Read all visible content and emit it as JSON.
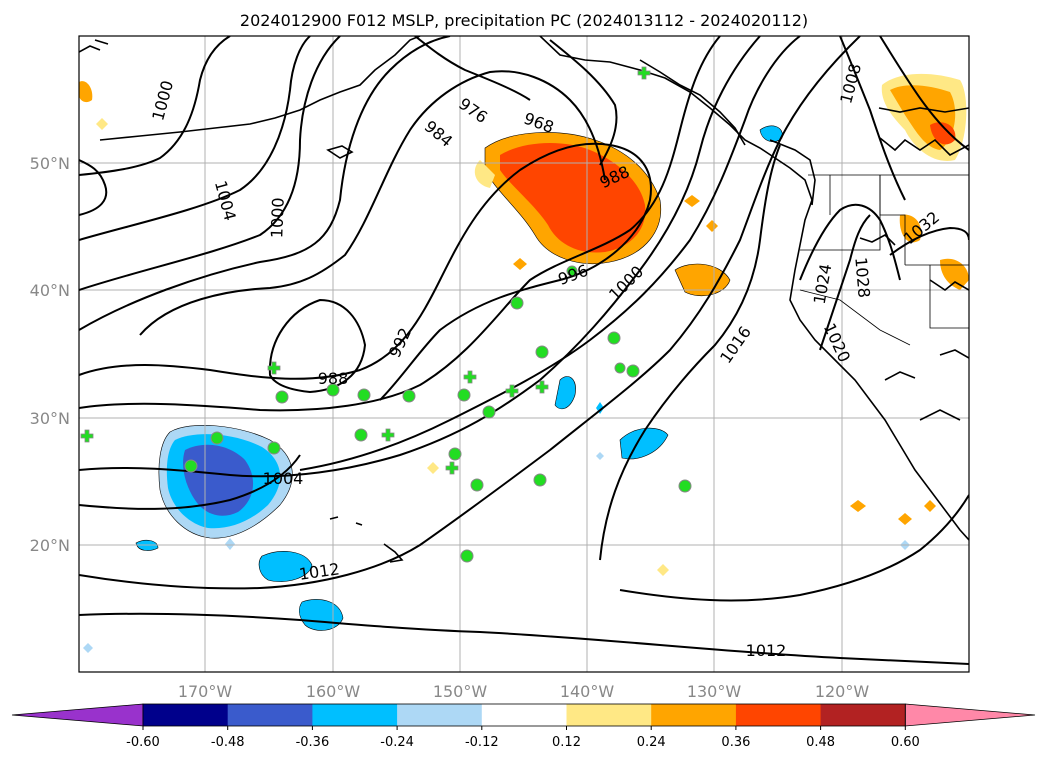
{
  "title": "2024012900 F012 MSLP, precipitation PC (2024013112 - 2024020112)",
  "lon_labels": [
    "170°W",
    "160°W",
    "150°W",
    "140°W",
    "130°W",
    "120°W"
  ],
  "lat_labels": [
    "50°N",
    "40°N",
    "30°N",
    "20°N"
  ],
  "contour_labels": [
    "1000",
    "1004",
    "1000",
    "984",
    "976",
    "968",
    "988",
    "992",
    "988",
    "996",
    "1000",
    "1004",
    "1012",
    "1016",
    "1012",
    "1008",
    "1032",
    "1028",
    "1024",
    "1020"
  ],
  "colorbar": {
    "ticks": [
      "-0.60",
      "-0.48",
      "-0.36",
      "-0.24",
      "-0.12",
      "0.12",
      "0.24",
      "0.36",
      "0.48",
      "0.60"
    ],
    "colors": [
      "#9932cc",
      "#00008b",
      "#3a5bcc",
      "#00bfff",
      "#add8f5",
      "#ffffff",
      "#ffe885",
      "#ffa500",
      "#ff4500",
      "#b22222",
      "#ff88a8"
    ]
  },
  "colors": {
    "station": "#22dd22",
    "positive_high": "#ff4500",
    "positive_mid": "#ffa500",
    "positive_low": "#ffe885",
    "negative_high": "#3a5bcc",
    "negative_mid": "#00bfff",
    "negative_low": "#add8f5"
  }
}
